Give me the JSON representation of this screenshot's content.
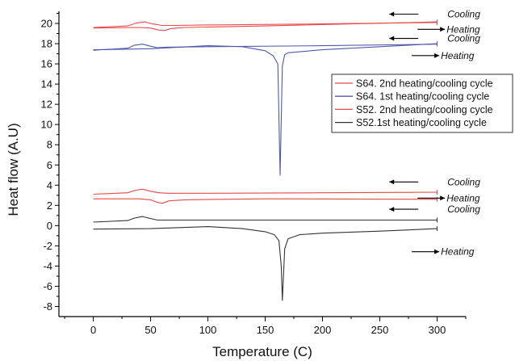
{
  "chart_data": {
    "type": "line",
    "title": "",
    "xlabel": "Temperature (C)",
    "ylabel": "Heat flow (A.U)",
    "xlim": [
      -30,
      325
    ],
    "ylim": [
      -9,
      21.2
    ],
    "x_ticks": [
      0,
      50,
      100,
      150,
      200,
      250,
      300
    ],
    "y_ticks": [
      -8,
      -6,
      -4,
      -2,
      0,
      2,
      4,
      6,
      8,
      10,
      12,
      14,
      16,
      18,
      20
    ],
    "grid": false,
    "legend_position": "right",
    "legend": [
      {
        "label": "S64. 2nd heating/cooling cycle",
        "color": "#e8484c"
      },
      {
        "label": "S64. 1st heating/cooling cycle",
        "color": "#5058a8"
      },
      {
        "label": "S52. 2nd heating/cooling cycle",
        "color": "#e8484c"
      },
      {
        "label": "S52.1st heating/cooling cycle",
        "color": "#333333"
      }
    ],
    "series": [
      {
        "name": "S64. 2nd heating/cooling cycle",
        "color": "#e8484c",
        "x": [
          0,
          30,
          38,
          45,
          52,
          60,
          70,
          100,
          200,
          300
        ],
        "y": [
          19.6,
          19.75,
          20.05,
          20.15,
          19.95,
          19.8,
          19.8,
          19.85,
          19.95,
          20.1
        ]
      },
      {
        "name": "S64. 2nd heating/cooling cycle",
        "color": "#e8484c",
        "x": [
          0,
          40,
          50,
          57,
          62,
          68,
          80,
          150,
          300
        ],
        "y": [
          19.55,
          19.6,
          19.55,
          19.35,
          19.3,
          19.5,
          19.6,
          19.75,
          20.15
        ]
      },
      {
        "name": "S64. 1st heating/cooling cycle",
        "color": "#5058a8",
        "x": [
          0,
          30,
          36,
          43,
          50,
          56,
          65,
          100,
          200,
          300
        ],
        "y": [
          17.35,
          17.55,
          17.85,
          17.95,
          17.75,
          17.6,
          17.65,
          17.7,
          17.8,
          17.95
        ]
      },
      {
        "name": "S64. 1st heating/cooling cycle",
        "color": "#5058a8",
        "x": [
          0,
          50,
          100,
          130,
          150,
          157,
          161,
          163,
          165,
          167,
          170,
          180,
          200,
          250,
          300
        ],
        "y": [
          17.4,
          17.5,
          17.8,
          17.7,
          17.3,
          16.8,
          16.0,
          5.0,
          15.8,
          16.9,
          17.1,
          17.2,
          17.4,
          17.7,
          18.0
        ]
      },
      {
        "name": "S52. 2nd heating/cooling cycle",
        "color": "#e8484c",
        "x": [
          0,
          30,
          37,
          43,
          50,
          57,
          65,
          100,
          200,
          300
        ],
        "y": [
          3.1,
          3.25,
          3.5,
          3.6,
          3.4,
          3.25,
          3.2,
          3.2,
          3.25,
          3.3
        ]
      },
      {
        "name": "S52. 2nd heating/cooling cycle",
        "color": "#e8484c",
        "x": [
          0,
          40,
          50,
          56,
          60,
          66,
          80,
          150,
          300
        ],
        "y": [
          2.65,
          2.65,
          2.55,
          2.3,
          2.2,
          2.45,
          2.55,
          2.65,
          2.6
        ]
      },
      {
        "name": "S52.1st heating/cooling cycle",
        "color": "#333333",
        "x": [
          0,
          30,
          36,
          43,
          50,
          56,
          65,
          100,
          200,
          300
        ],
        "y": [
          0.35,
          0.5,
          0.75,
          0.9,
          0.7,
          0.55,
          0.55,
          0.55,
          0.55,
          0.55
        ]
      },
      {
        "name": "S52.1st heating/cooling cycle",
        "color": "#333333",
        "x": [
          0,
          50,
          100,
          130,
          150,
          158,
          162,
          164,
          165,
          167,
          170,
          180,
          200,
          250,
          300
        ],
        "y": [
          -0.35,
          -0.3,
          -0.1,
          -0.3,
          -0.6,
          -0.9,
          -1.5,
          -4.0,
          -7.4,
          -2.3,
          -1.3,
          -0.9,
          -0.75,
          -0.55,
          -0.3
        ]
      }
    ],
    "annotations": [
      {
        "text": "Cooling",
        "x": 285,
        "y": 20.6
      },
      {
        "text": "Heating",
        "x": 285,
        "y": 19.1
      },
      {
        "text": "Cooling",
        "x": 285,
        "y": 18.2
      },
      {
        "text": "Heating",
        "x": 280,
        "y": 16.5
      },
      {
        "text": "Cooling",
        "x": 285,
        "y": 4.0
      },
      {
        "text": "Heating",
        "x": 285,
        "y": 2.4
      },
      {
        "text": "Cooling",
        "x": 285,
        "y": 1.3
      },
      {
        "text": "Heating",
        "x": 280,
        "y": -2.9
      }
    ]
  }
}
